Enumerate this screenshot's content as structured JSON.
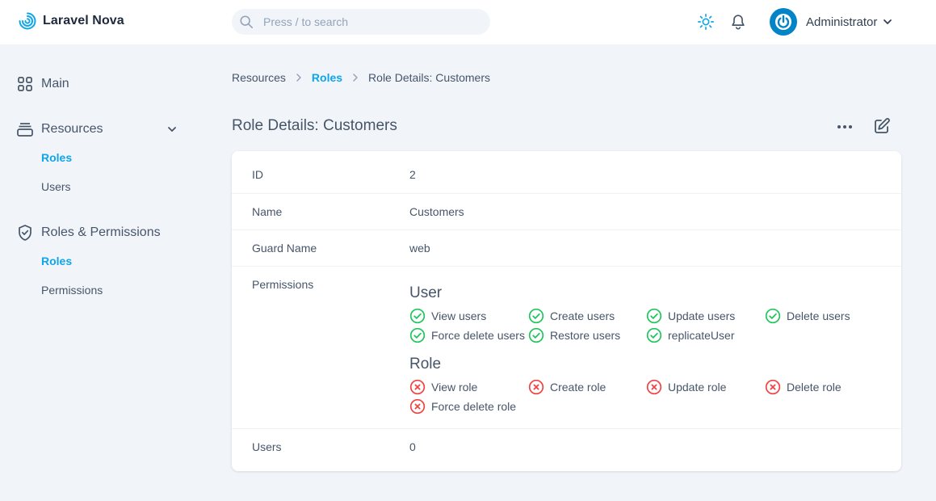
{
  "brand": {
    "name": "Laravel Nova",
    "accent": "#0ea5e9"
  },
  "search": {
    "placeholder": "Press / to search"
  },
  "header": {
    "theme_icon": "sun-icon",
    "notifications_icon": "bell-icon",
    "user_name": "Administrator"
  },
  "sidebar": {
    "main_label": "Main",
    "resources": {
      "label": "Resources",
      "items": [
        "Roles",
        "Users"
      ]
    },
    "roles_permissions": {
      "label": "Roles & Permissions",
      "items": [
        "Roles",
        "Permissions"
      ]
    }
  },
  "breadcrumb": {
    "items": [
      "Resources",
      "Roles"
    ],
    "current": "Role Details: Customers"
  },
  "page": {
    "title": "Role Details: Customers"
  },
  "details": {
    "id": {
      "label": "ID",
      "value": "2"
    },
    "name": {
      "label": "Name",
      "value": "Customers"
    },
    "guard": {
      "label": "Guard Name",
      "value": "web"
    },
    "permissions_label": "Permissions",
    "users": {
      "label": "Users",
      "value": "0"
    }
  },
  "permissions": {
    "user": {
      "heading": "User",
      "items": [
        {
          "label": "View users",
          "granted": true
        },
        {
          "label": "Create users",
          "granted": true
        },
        {
          "label": "Update users",
          "granted": true
        },
        {
          "label": "Delete users",
          "granted": true
        },
        {
          "label": "Force delete users",
          "granted": true
        },
        {
          "label": "Restore users",
          "granted": true
        },
        {
          "label": "replicateUser",
          "granted": true
        }
      ]
    },
    "role": {
      "heading": "Role",
      "items": [
        {
          "label": "View role",
          "granted": false
        },
        {
          "label": "Create role",
          "granted": false
        },
        {
          "label": "Update role",
          "granted": false
        },
        {
          "label": "Delete role",
          "granted": false
        },
        {
          "label": "Force delete role",
          "granted": false
        }
      ]
    }
  },
  "colors": {
    "granted": "#22c55e",
    "denied": "#ef4444",
    "active_link": "#0ea5e9"
  }
}
